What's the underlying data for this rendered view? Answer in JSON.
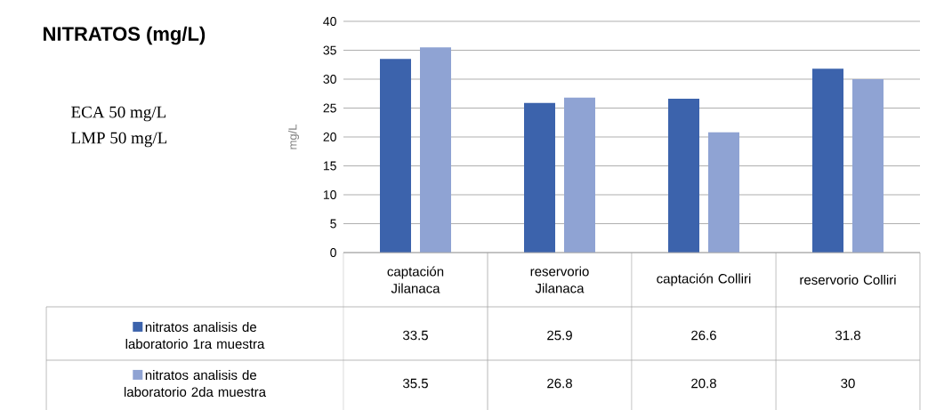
{
  "chart_data": {
    "type": "bar",
    "title": "NITRATOS (mg/L)",
    "ylabel": "mg/L",
    "annotations": [
      "ECA 50 mg/L",
      "LMP 50 mg/L"
    ],
    "categories": [
      "captación Jilanaca",
      "reservorio Jilanaca",
      "captación Colliri",
      "reservorio Colliri"
    ],
    "series": [
      {
        "name": "nitratos analisis de laboratorio 1ra muestra",
        "color": "#3c63ac",
        "values": [
          33.5,
          25.9,
          26.6,
          31.8
        ]
      },
      {
        "name": "nitratos analisis de laboratorio 2da muestra",
        "color": "#8fa3d3",
        "values": [
          35.5,
          26.8,
          20.8,
          30
        ]
      }
    ],
    "ylim": [
      0,
      40
    ],
    "yticks": [
      0,
      5,
      10,
      15,
      20,
      25,
      30,
      35,
      40
    ],
    "grid": "y",
    "legend": "left",
    "data_labels": true
  }
}
